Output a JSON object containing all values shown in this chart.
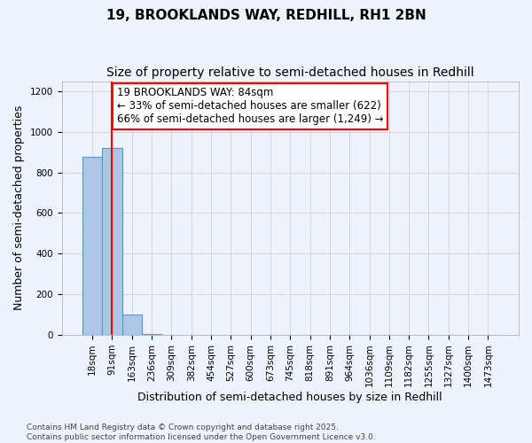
{
  "title": "19, BROOKLANDS WAY, REDHILL, RH1 2BN",
  "subtitle": "Size of property relative to semi-detached houses in Redhill",
  "xlabel": "Distribution of semi-detached houses by size in Redhill",
  "ylabel": "Number of semi-detached properties",
  "bin_labels": [
    "18sqm",
    "91sqm",
    "163sqm",
    "236sqm",
    "309sqm",
    "382sqm",
    "454sqm",
    "527sqm",
    "600sqm",
    "673sqm",
    "745sqm",
    "818sqm",
    "891sqm",
    "964sqm",
    "1036sqm",
    "1109sqm",
    "1182sqm",
    "1255sqm",
    "1327sqm",
    "1400sqm",
    "1473sqm"
  ],
  "values": [
    875,
    920,
    100,
    5,
    2,
    1,
    1,
    0,
    0,
    0,
    0,
    0,
    0,
    0,
    0,
    0,
    0,
    0,
    0,
    0,
    0
  ],
  "bar_color": "#aec6e8",
  "bar_edge_color": "#5599cc",
  "property_line_x": 1,
  "annotation_text": "19 BROOKLANDS WAY: 84sqm\n← 33% of semi-detached houses are smaller (622)\n66% of semi-detached houses are larger (1,249) →",
  "annotation_box_color": "white",
  "annotation_box_edge_color": "red",
  "vline_color": "red",
  "ylim": [
    0,
    1250
  ],
  "yticks": [
    0,
    200,
    400,
    600,
    800,
    1000,
    1200
  ],
  "footer": "Contains HM Land Registry data © Crown copyright and database right 2025.\nContains public sector information licensed under the Open Government Licence v3.0.",
  "background_color": "#eef2fb",
  "grid_color": "#cccccc",
  "title_fontsize": 11,
  "subtitle_fontsize": 10,
  "xlabel_fontsize": 9,
  "ylabel_fontsize": 9,
  "tick_fontsize": 7.5,
  "annotation_fontsize": 8.5,
  "footer_fontsize": 6.5
}
